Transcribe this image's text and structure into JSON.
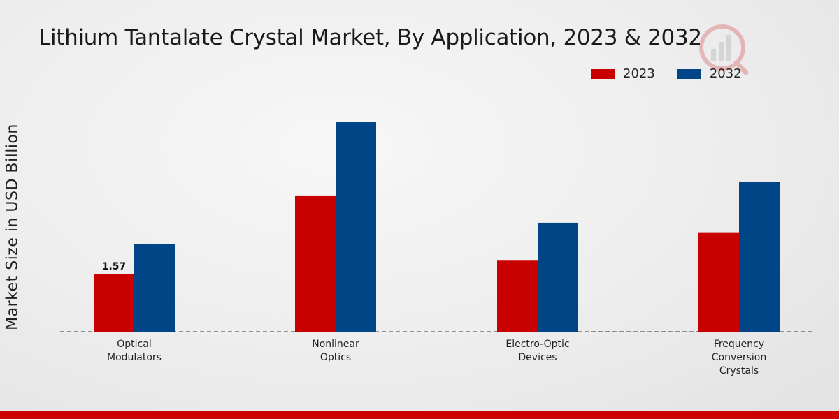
{
  "colors": {
    "series_2023": "#c80000",
    "series_2032": "#004687",
    "axis": "#333333",
    "footer": "#cc0000"
  },
  "icons": {
    "logo": "analytics-logo-icon"
  },
  "chart_data": {
    "type": "bar",
    "title": "Lithium Tantalate Crystal Market, By Application, 2023 & 2032",
    "xlabel": "",
    "ylabel": "Market Size in USD Billion",
    "ylim": [
      0,
      5.5
    ],
    "legend_position": "top-right",
    "grid": false,
    "categories": [
      [
        "Optical",
        "Modulators"
      ],
      [
        "Nonlinear",
        "Optics"
      ],
      [
        "Electro-Optic",
        "Devices"
      ],
      [
        "Frequency",
        "Conversion",
        "Crystals"
      ]
    ],
    "series": [
      {
        "name": "2023",
        "color": "#c80000",
        "values": [
          1.57,
          3.7,
          1.93,
          2.7
        ]
      },
      {
        "name": "2032",
        "color": "#004687",
        "values": [
          2.38,
          5.7,
          2.96,
          4.07
        ]
      }
    ],
    "data_labels": [
      {
        "series": 0,
        "index": 0,
        "text": "1.57"
      }
    ]
  }
}
